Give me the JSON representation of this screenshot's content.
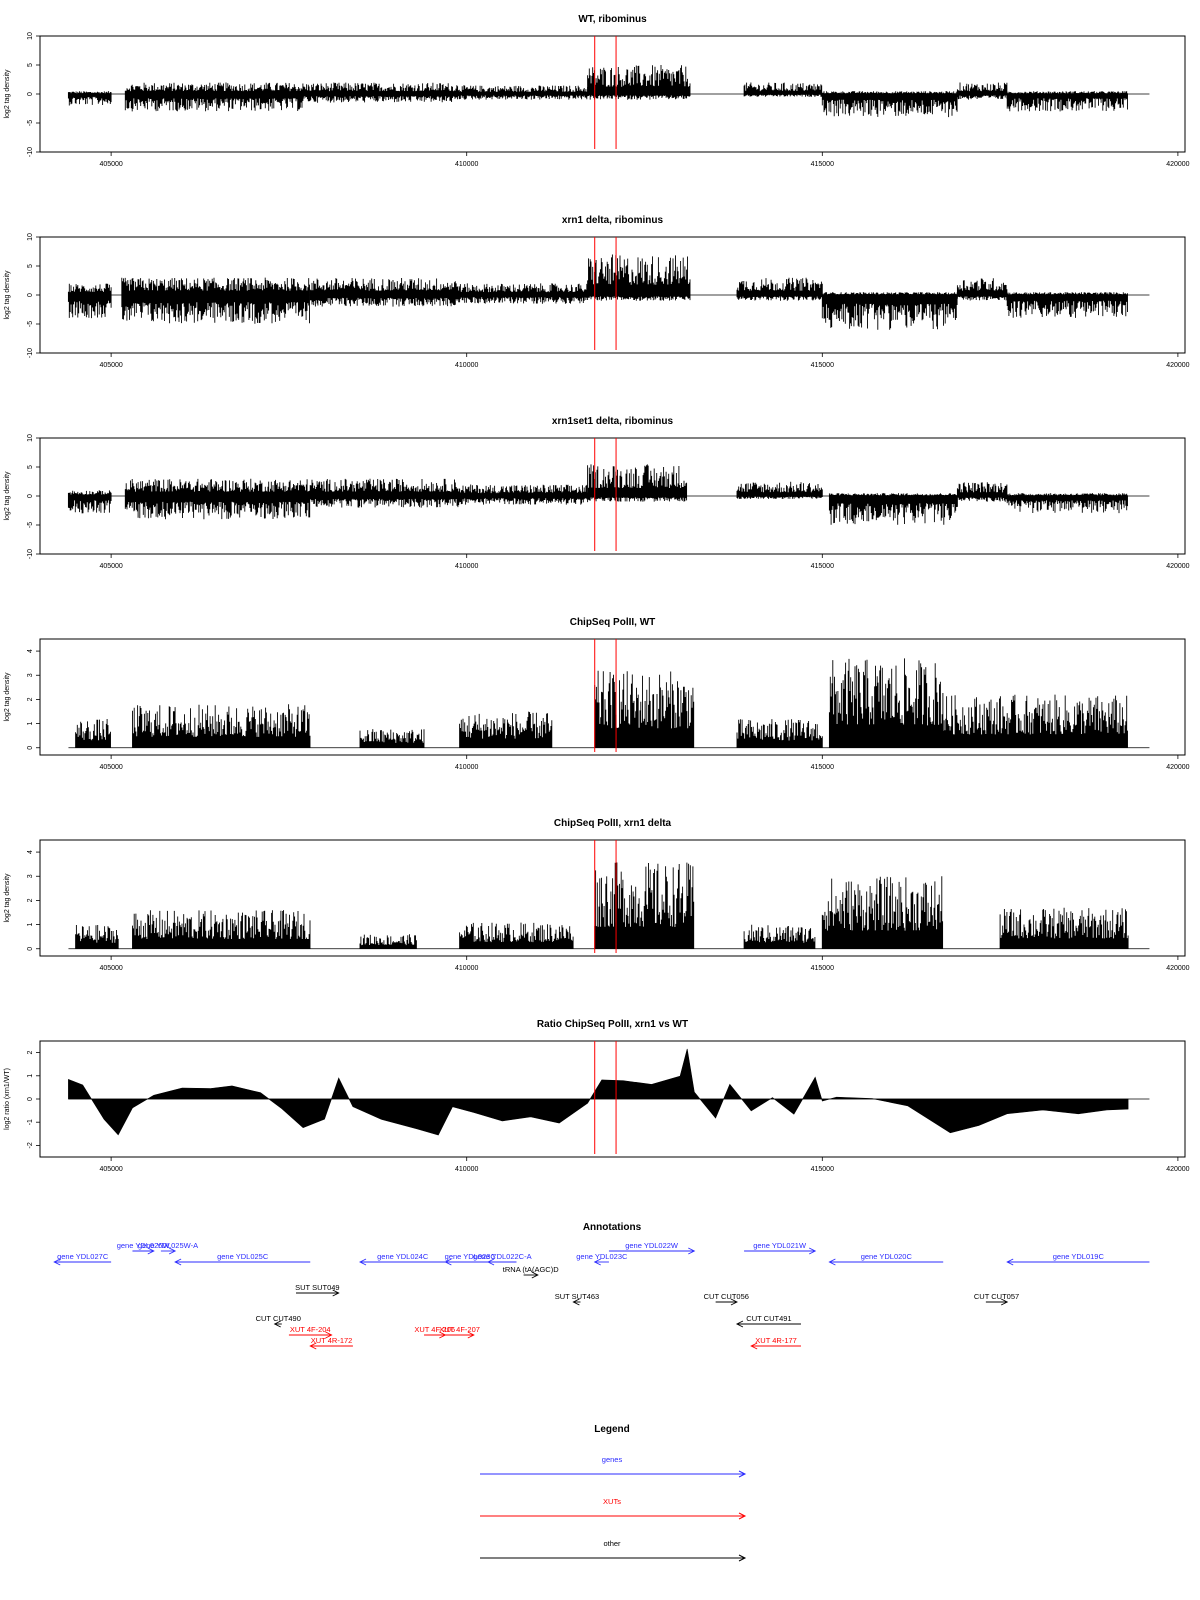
{
  "colors": {
    "gene": "#2b2bff",
    "xut": "#ff0000",
    "other": "#000000",
    "marker": "#ff0000"
  },
  "markers_x": [
    411800,
    412100
  ],
  "chart_data": [
    {
      "type": "area",
      "title": "WT, ribominus",
      "ylabel": "log2 tag density",
      "xlim": [
        404400,
        419600
      ],
      "ylim": [
        -10,
        10
      ],
      "xticks": [
        405000,
        410000,
        415000,
        420000
      ],
      "yticks": [
        10,
        5,
        0,
        -5,
        -10
      ],
      "segments": [
        {
          "x": [
            404400,
            405000
          ],
          "min": -2,
          "max": 0.5
        },
        {
          "x": [
            405200,
            407700
          ],
          "min": -3,
          "max": 2
        },
        {
          "x": [
            407700,
            409900
          ],
          "min": -1.5,
          "max": 2
        },
        {
          "x": [
            409900,
            411700
          ],
          "min": -1,
          "max": 1.5
        },
        {
          "x": [
            411700,
            413150
          ],
          "min": -1,
          "max": 5
        },
        {
          "x": [
            413900,
            415000
          ],
          "min": -0.5,
          "max": 2
        },
        {
          "x": [
            415000,
            416900
          ],
          "min": -4,
          "max": 0.5
        },
        {
          "x": [
            416900,
            417600
          ],
          "min": -1,
          "max": 2
        },
        {
          "x": [
            417600,
            419300
          ],
          "min": -3,
          "max": 0.5
        }
      ]
    },
    {
      "type": "area",
      "title": "xrn1 delta, ribominus",
      "ylabel": "log2 tag density",
      "xlim": [
        404400,
        419600
      ],
      "ylim": [
        -10,
        10
      ],
      "xticks": [
        405000,
        410000,
        415000,
        420000
      ],
      "yticks": [
        10,
        5,
        0,
        -5,
        -10
      ],
      "segments": [
        {
          "x": [
            404400,
            405000
          ],
          "min": -4,
          "max": 2
        },
        {
          "x": [
            405150,
            407800
          ],
          "min": -5,
          "max": 3
        },
        {
          "x": [
            407800,
            409900
          ],
          "min": -2,
          "max": 3
        },
        {
          "x": [
            409900,
            411700
          ],
          "min": -1.5,
          "max": 2
        },
        {
          "x": [
            411700,
            413150
          ],
          "min": -1,
          "max": 7
        },
        {
          "x": [
            413800,
            415000
          ],
          "min": -1,
          "max": 3
        },
        {
          "x": [
            415000,
            416900
          ],
          "min": -6,
          "max": 0.5
        },
        {
          "x": [
            416900,
            417600
          ],
          "min": -1,
          "max": 3
        },
        {
          "x": [
            417600,
            419300
          ],
          "min": -4,
          "max": 0.5
        }
      ]
    },
    {
      "type": "area",
      "title": "xrn1set1 delta, ribominus",
      "ylabel": "log2 tag density",
      "xlim": [
        404400,
        419600
      ],
      "ylim": [
        -10,
        10
      ],
      "xticks": [
        405000,
        410000,
        415000,
        420000
      ],
      "yticks": [
        10,
        5,
        0,
        -5,
        -10
      ],
      "segments": [
        {
          "x": [
            404400,
            405000
          ],
          "min": -3,
          "max": 1
        },
        {
          "x": [
            405200,
            407800
          ],
          "min": -4,
          "max": 3
        },
        {
          "x": [
            407800,
            409900
          ],
          "min": -2,
          "max": 3
        },
        {
          "x": [
            409900,
            411700
          ],
          "min": -1.5,
          "max": 2
        },
        {
          "x": [
            411700,
            413100
          ],
          "min": -1,
          "max": 5.5
        },
        {
          "x": [
            413800,
            415000
          ],
          "min": -0.5,
          "max": 2.5
        },
        {
          "x": [
            415100,
            416900
          ],
          "min": -5,
          "max": 0.5
        },
        {
          "x": [
            416900,
            417600
          ],
          "min": -1,
          "max": 2.5
        },
        {
          "x": [
            417600,
            419300
          ],
          "min": -3,
          "max": 0.5
        }
      ]
    },
    {
      "type": "area",
      "title": "ChipSeq PolII, WT",
      "ylabel": "log2 tag density",
      "xlim": [
        404400,
        419600
      ],
      "ylim": [
        -0.3,
        4.5
      ],
      "xticks": [
        405000,
        410000,
        415000,
        420000
      ],
      "yticks": [
        4,
        3,
        2,
        1,
        0
      ],
      "segments": [
        {
          "x": [
            404500,
            405000
          ],
          "min": 0,
          "max": 1.2
        },
        {
          "x": [
            405300,
            407800
          ],
          "min": 0,
          "max": 1.8
        },
        {
          "x": [
            408500,
            409400
          ],
          "min": 0,
          "max": 0.8
        },
        {
          "x": [
            409900,
            411200
          ],
          "min": 0,
          "max": 1.5
        },
        {
          "x": [
            411800,
            413200
          ],
          "min": 0,
          "max": 3.2
        },
        {
          "x": [
            413800,
            415000
          ],
          "min": 0,
          "max": 1.2
        },
        {
          "x": [
            415100,
            416700
          ],
          "min": 0,
          "max": 3.7
        },
        {
          "x": [
            416700,
            419300
          ],
          "min": 0,
          "max": 2.2
        }
      ]
    },
    {
      "type": "area",
      "title": "ChipSeq PolII, xrn1 delta",
      "ylabel": "log2 tag density",
      "xlim": [
        404400,
        419600
      ],
      "ylim": [
        -0.3,
        4.5
      ],
      "xticks": [
        405000,
        410000,
        415000,
        420000
      ],
      "yticks": [
        4,
        3,
        2,
        1,
        0
      ],
      "segments": [
        {
          "x": [
            404500,
            405100
          ],
          "min": 0,
          "max": 1.0
        },
        {
          "x": [
            405300,
            407800
          ],
          "min": 0,
          "max": 1.6
        },
        {
          "x": [
            408500,
            409300
          ],
          "min": 0,
          "max": 0.6
        },
        {
          "x": [
            409900,
            411500
          ],
          "min": 0,
          "max": 1.1
        },
        {
          "x": [
            411800,
            413200
          ],
          "min": 0,
          "max": 3.6
        },
        {
          "x": [
            413900,
            414900
          ],
          "min": 0,
          "max": 1.0
        },
        {
          "x": [
            415000,
            416700
          ],
          "min": 0,
          "max": 3.0
        },
        {
          "x": [
            417500,
            419300
          ],
          "min": 0,
          "max": 1.7
        }
      ]
    },
    {
      "type": "area",
      "title": "Ratio ChipSeq PolII, xrn1 vs WT",
      "ylabel": "log2 ratio (xrn1/WT)",
      "xlim": [
        404400,
        419600
      ],
      "ylim": [
        -2.5,
        2.5
      ],
      "xticks": [
        405000,
        410000,
        415000,
        420000
      ],
      "yticks": [
        2,
        1,
        0,
        -1,
        -2
      ],
      "profile": {
        "x": [
          404400,
          404600,
          404900,
          405100,
          405300,
          405600,
          406000,
          406400,
          406700,
          407100,
          407400,
          407700,
          408000,
          408200,
          408400,
          408800,
          409300,
          409600,
          409800,
          410100,
          410500,
          410900,
          411300,
          411700,
          411900,
          412200,
          412600,
          413000,
          413100,
          413200,
          413500,
          413700,
          414000,
          414300,
          414600,
          414900,
          415000,
          415200,
          415700,
          416200,
          416800,
          417200,
          417600,
          418100,
          418600,
          419000,
          419300
        ],
        "y": [
          0.8,
          0.6,
          -0.8,
          -1.6,
          -0.4,
          0.2,
          0.5,
          0.4,
          0.6,
          0.3,
          -0.4,
          -1.2,
          -0.8,
          0.9,
          -0.4,
          -0.9,
          -1.3,
          -1.6,
          -0.3,
          -0.6,
          -0.9,
          -0.7,
          -1.1,
          -0.2,
          0.8,
          0.8,
          0.7,
          1.0,
          2.2,
          0.3,
          -0.8,
          0.7,
          -0.5,
          0.1,
          -0.7,
          0.9,
          -0.1,
          0.1,
          0.0,
          -0.3,
          -1.4,
          -1.1,
          -0.7,
          -0.5,
          -0.7,
          -0.5,
          -0.4
        ]
      }
    }
  ],
  "annotations": {
    "title": "Annotations",
    "features": [
      {
        "label": "gene YDL027C",
        "kind": "gene",
        "x1": 404200,
        "x2": 405000,
        "row": 1,
        "dir": "left"
      },
      {
        "label": "gene YDL026W",
        "kind": "gene",
        "x1": 405300,
        "x2": 405600,
        "row": 0,
        "dir": "right"
      },
      {
        "label": "gene YDL025W-A",
        "kind": "gene",
        "x1": 405700,
        "x2": 405900,
        "row": 0,
        "dir": "right"
      },
      {
        "label": "gene YDL025C",
        "kind": "gene",
        "x1": 405900,
        "x2": 407800,
        "row": 1,
        "dir": "left"
      },
      {
        "label": "gene YDL024C",
        "kind": "gene",
        "x1": 408500,
        "x2": 409700,
        "row": 1,
        "dir": "left"
      },
      {
        "label": "gene YDL023C",
        "kind": "gene",
        "x1": 409700,
        "x2": 410400,
        "row": 1,
        "dir": "left"
      },
      {
        "label": "gene YDL022C-A",
        "kind": "gene",
        "x1": 410300,
        "x2": 410700,
        "row": 1,
        "dir": "left"
      },
      {
        "label": "tRNA (tA(AGC)D",
        "kind": "other",
        "x1": 410800,
        "x2": 411000,
        "row": 2,
        "dir": "right"
      },
      {
        "label": "gene YDL023C",
        "kind": "gene",
        "x1": 411800,
        "x2": 412000,
        "row": 1,
        "dir": "left"
      },
      {
        "label": "gene YDL022W",
        "kind": "gene",
        "x1": 412000,
        "x2": 413200,
        "row": 0,
        "dir": "right"
      },
      {
        "label": "gene YDL021W",
        "kind": "gene",
        "x1": 413900,
        "x2": 414900,
        "row": 0,
        "dir": "right"
      },
      {
        "label": "gene YDL020C",
        "kind": "gene",
        "x1": 415100,
        "x2": 416700,
        "row": 1,
        "dir": "left"
      },
      {
        "label": "gene YDL019C",
        "kind": "gene",
        "x1": 417600,
        "x2": 419600,
        "row": 1,
        "dir": "left"
      },
      {
        "label": "SUT SUT049",
        "kind": "other",
        "x1": 407600,
        "x2": 408200,
        "row": 3,
        "dir": "right"
      },
      {
        "label": "SUT SUT463",
        "kind": "other",
        "x1": 411500,
        "x2": 411600,
        "row": 4,
        "dir": "left"
      },
      {
        "label": "CUT CUT490",
        "kind": "other",
        "x1": 407300,
        "x2": 407400,
        "row": 5,
        "dir": "left"
      },
      {
        "label": "XUT 4F-204",
        "kind": "xut",
        "x1": 407500,
        "x2": 408100,
        "row": 6,
        "dir": "right"
      },
      {
        "label": "XUT 4R-172",
        "kind": "xut",
        "x1": 407800,
        "x2": 408400,
        "row": 7,
        "dir": "left"
      },
      {
        "label": "XUT 4F-206",
        "kind": "xut",
        "x1": 409400,
        "x2": 409700,
        "row": 6,
        "dir": "right"
      },
      {
        "label": "XUT 4F-207",
        "kind": "xut",
        "x1": 409700,
        "x2": 410100,
        "row": 6,
        "dir": "right"
      },
      {
        "label": "CUT CUT056",
        "kind": "other",
        "x1": 413500,
        "x2": 413800,
        "row": 4,
        "dir": "right"
      },
      {
        "label": "CUT CUT491",
        "kind": "other",
        "x1": 413800,
        "x2": 414700,
        "row": 5,
        "dir": "left"
      },
      {
        "label": "XUT 4R-177",
        "kind": "xut",
        "x1": 414000,
        "x2": 414700,
        "row": 7,
        "dir": "left"
      },
      {
        "label": "CUT CUT057",
        "kind": "other",
        "x1": 417300,
        "x2": 417600,
        "row": 4,
        "dir": "right"
      }
    ]
  },
  "legend": {
    "title": "Legend",
    "items": [
      {
        "label": "genes",
        "kind": "gene"
      },
      {
        "label": "XUTs",
        "kind": "xut"
      },
      {
        "label": "other",
        "kind": "other"
      }
    ]
  }
}
